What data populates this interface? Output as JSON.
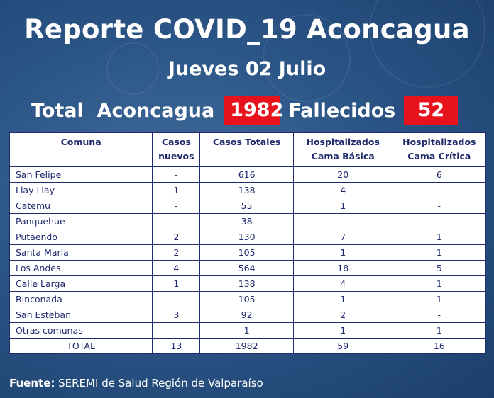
{
  "header": {
    "title": "Reporte COVID_19 Aconcagua",
    "date": "Jueves 02 Julio"
  },
  "summary": {
    "total_label": "Total  Aconcagua",
    "total_value": "1982",
    "deaths_label": "Fallecidos",
    "deaths_value": "52"
  },
  "colors": {
    "badge": "#e8121d",
    "table_text": "#1f2a6d",
    "background": "#2b5586"
  },
  "table": {
    "headers": [
      [
        "Comuna"
      ],
      [
        "Casos",
        "nuevos"
      ],
      [
        "Casos Totales"
      ],
      [
        "Hospitalizados",
        "Cama Básica"
      ],
      [
        "Hospitalizados",
        "Cama Crítica"
      ]
    ],
    "rows": [
      [
        "San Felipe",
        "-",
        "616",
        "20",
        "6"
      ],
      [
        "Llay Llay",
        "1",
        "138",
        "4",
        "-"
      ],
      [
        "Catemu",
        "-",
        "55",
        "1",
        "-"
      ],
      [
        "Panquehue",
        "-",
        "38",
        "-",
        "-"
      ],
      [
        "Putaendo",
        "2",
        "130",
        "7",
        "1"
      ],
      [
        "Santa María",
        "2",
        "105",
        "1",
        "1"
      ],
      [
        "Los Andes",
        "4",
        "564",
        "18",
        "5"
      ],
      [
        "Calle Larga",
        "1",
        "138",
        "4",
        "1"
      ],
      [
        "Rinconada",
        "-",
        "105",
        "1",
        "1"
      ],
      [
        "San Esteban",
        "3",
        "92",
        "2",
        "-"
      ],
      [
        "Otras comunas",
        "-",
        "1",
        "1",
        "1"
      ]
    ],
    "total_row": [
      "TOTAL",
      "13",
      "1982",
      "59",
      "16"
    ]
  },
  "footer": {
    "label": "Fuente:",
    "text": "SEREMI de Salud Región de Valparaíso"
  }
}
